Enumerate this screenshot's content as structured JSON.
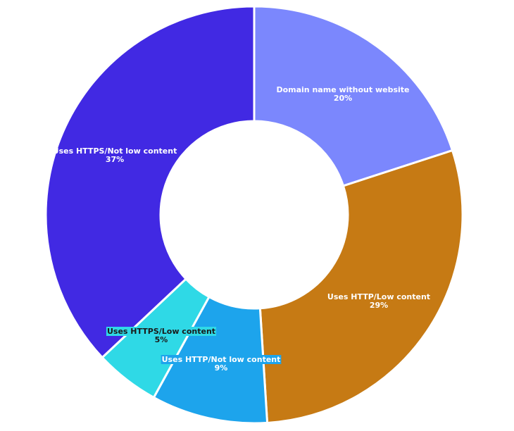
{
  "chart_data": {
    "type": "pie",
    "variant": "donut",
    "title": "",
    "slices": [
      {
        "label": "Domain name without website",
        "value": 20,
        "value_label": "20%",
        "color": "#7b87fd",
        "text_color": "#ffffff",
        "highlight": false
      },
      {
        "label": "Uses HTTP/Low content",
        "value": 29,
        "value_label": "29%",
        "color": "#c67a14",
        "text_color": "#ffffff",
        "highlight": false
      },
      {
        "label": "Uses HTTP/Not low content",
        "value": 9,
        "value_label": "9%",
        "color": "#1da4ec",
        "text_color": "#ffffff",
        "highlight": true,
        "highlight_color": "#1da4ec"
      },
      {
        "label": "Uses HTTPS/Low content",
        "value": 5,
        "value_label": "5%",
        "color": "#2fd9e6",
        "text_color": "#1a1a1a",
        "highlight": true,
        "highlight_color": "#2fd9e6"
      },
      {
        "label": "Uses HTTPS/Not low content",
        "value": 37,
        "value_label": "37%",
        "color": "#4129e3",
        "text_color": "#ffffff",
        "highlight": false
      }
    ],
    "start_angle_deg": 0,
    "direction": "clockwise",
    "legend": "none"
  }
}
